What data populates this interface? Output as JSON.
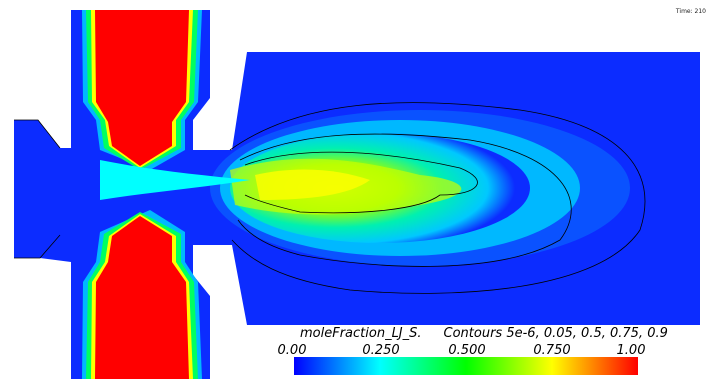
{
  "time_label": "Time: 210",
  "legend": {
    "title": "moleFraction_LJ_S.",
    "contours": "Contours 5e-6, 0.05, 0.5, 0.75, 0.9",
    "ticks": [
      "0.00",
      "0.250",
      "0.500",
      "0.750",
      "1.00"
    ],
    "range": [
      0,
      1
    ],
    "colormap": [
      "#0000ff",
      "#00ffff",
      "#00ff00",
      "#ffff00",
      "#ff0000"
    ]
  },
  "colors": {
    "background": "#0c2cff",
    "jet": "#ff0000",
    "wall": "#ffffff"
  }
}
